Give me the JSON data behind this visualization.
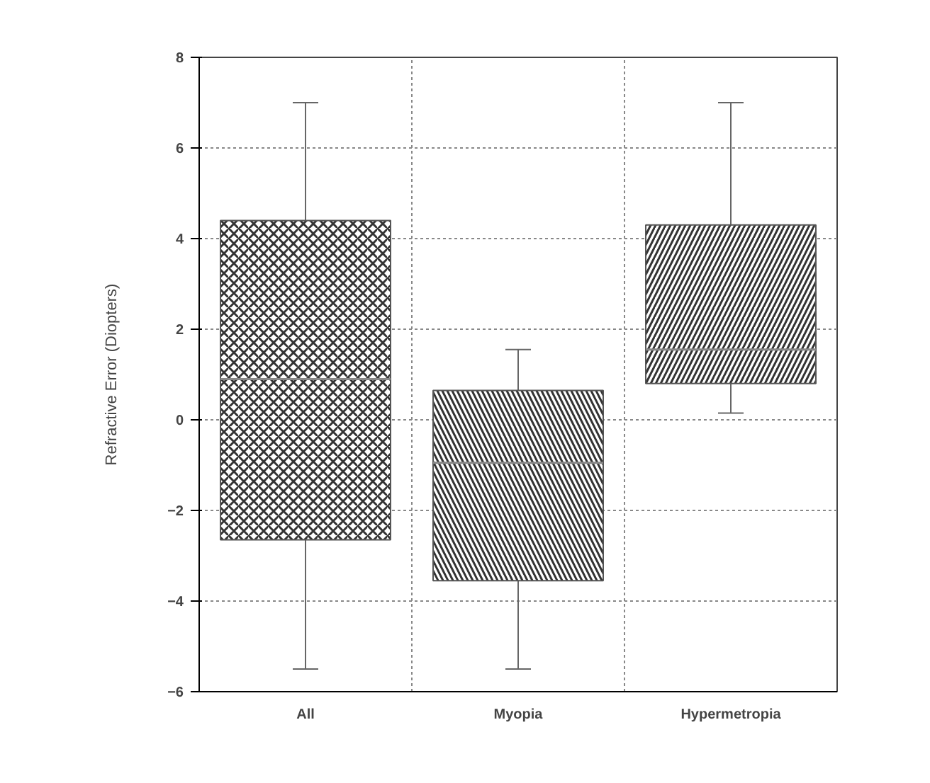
{
  "chart_data": {
    "type": "box",
    "ylabel": "Refractive Error (Diopters)",
    "categories": [
      "All",
      "Myopia",
      "Hypermetropia"
    ],
    "boxes": [
      {
        "low": -5.5,
        "q1": -2.65,
        "median": 0.9,
        "q3": 4.4,
        "high": 7
      },
      {
        "low": -5.5,
        "q1": -3.55,
        "median": -0.95,
        "q3": 0.65,
        "high": 1.55
      },
      {
        "low": 0.15,
        "q1": 0.8,
        "median": 1.55,
        "q3": 4.3,
        "high": 7
      }
    ],
    "ylim": [
      -6,
      8
    ],
    "yticks": [
      -6,
      -4,
      -2,
      0,
      2,
      4,
      6,
      8
    ],
    "grid": true
  }
}
